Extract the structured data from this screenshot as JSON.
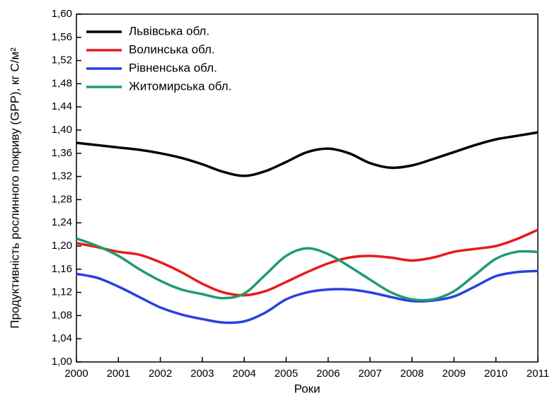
{
  "chart_data": {
    "type": "line",
    "xlabel": "Роки",
    "ylabel": "Продуктивність рослинного покриву (GPP), кг С/м²",
    "x": [
      2000,
      2000.5,
      2001,
      2001.5,
      2002,
      2002.5,
      2003,
      2003.5,
      2004,
      2004.5,
      2005,
      2005.5,
      2006,
      2006.5,
      2007,
      2007.5,
      2008,
      2008.5,
      2009,
      2009.5,
      2010,
      2010.5,
      2011
    ],
    "series": [
      {
        "name": "Львівська обл.",
        "color": "#000000",
        "values": [
          1.378,
          1.374,
          1.37,
          1.366,
          1.36,
          1.352,
          1.341,
          1.328,
          1.321,
          1.329,
          1.345,
          1.362,
          1.368,
          1.36,
          1.343,
          1.335,
          1.339,
          1.35,
          1.362,
          1.374,
          1.384,
          1.39,
          1.396
        ]
      },
      {
        "name": "Волинська обл.",
        "color": "#e8191c",
        "values": [
          1.205,
          1.198,
          1.19,
          1.185,
          1.172,
          1.155,
          1.135,
          1.12,
          1.115,
          1.122,
          1.138,
          1.155,
          1.17,
          1.18,
          1.183,
          1.18,
          1.175,
          1.18,
          1.19,
          1.195,
          1.2,
          1.212,
          1.228
        ]
      },
      {
        "name": "Рівненська обл.",
        "color": "#2a3fe0",
        "values": [
          1.152,
          1.145,
          1.13,
          1.112,
          1.094,
          1.082,
          1.074,
          1.068,
          1.07,
          1.085,
          1.108,
          1.12,
          1.125,
          1.125,
          1.12,
          1.112,
          1.105,
          1.106,
          1.113,
          1.13,
          1.148,
          1.155,
          1.157
        ]
      },
      {
        "name": "Житомирська обл.",
        "color": "#1f9a6e",
        "values": [
          1.213,
          1.2,
          1.183,
          1.16,
          1.14,
          1.125,
          1.117,
          1.11,
          1.118,
          1.15,
          1.183,
          1.196,
          1.186,
          1.165,
          1.142,
          1.12,
          1.108,
          1.108,
          1.122,
          1.15,
          1.178,
          1.19,
          1.19
        ]
      }
    ],
    "xlim": [
      2000,
      2011
    ],
    "xticks": [
      2000,
      2001,
      2002,
      2003,
      2004,
      2005,
      2006,
      2007,
      2008,
      2009,
      2010,
      2011
    ],
    "ylim": [
      1.0,
      1.6
    ],
    "yticks": [
      {
        "value": 1.0,
        "label": "1,00"
      },
      {
        "value": 1.04,
        "label": "1,04"
      },
      {
        "value": 1.08,
        "label": "1,08"
      },
      {
        "value": 1.12,
        "label": "1,12"
      },
      {
        "value": 1.16,
        "label": "1,16"
      },
      {
        "value": 1.2,
        "label": "1,20"
      },
      {
        "value": 1.24,
        "label": "1,24"
      },
      {
        "value": 1.28,
        "label": "1,28"
      },
      {
        "value": 1.32,
        "label": "1,32"
      },
      {
        "value": 1.36,
        "label": "1,36"
      },
      {
        "value": 1.4,
        "label": "1,40"
      },
      {
        "value": 1.44,
        "label": "1,44"
      },
      {
        "value": 1.48,
        "label": "1,48"
      },
      {
        "value": 1.52,
        "label": "1,52"
      },
      {
        "value": 1.56,
        "label": "1,56"
      },
      {
        "value": 1.6,
        "label": "1,60"
      }
    ],
    "legend": "upper left"
  }
}
